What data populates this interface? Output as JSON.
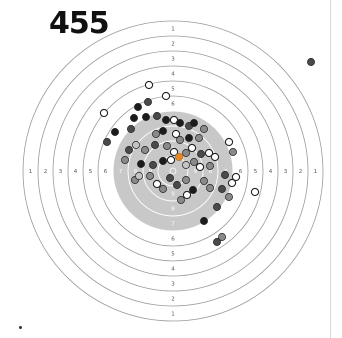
{
  "score": "455",
  "ring_numbers": [
    "1",
    "2",
    "3",
    "4",
    "5",
    "6",
    "7",
    "8",
    "9"
  ],
  "colors": {
    "background": "#ffffff",
    "ring_line": "#9a9a9a",
    "black_zone": "#c8c8c8",
    "ring_number": "#555555",
    "shot_black": "#1c1c1c",
    "shot_dark_gray": "#4a4a4a",
    "shot_mid_gray": "#8a8a8a",
    "shot_light_gray": "#c4c4c4",
    "shot_white": "#ffffff",
    "shot_highlight": "#e28a2b",
    "shot_outline": "#222222"
  }
}
